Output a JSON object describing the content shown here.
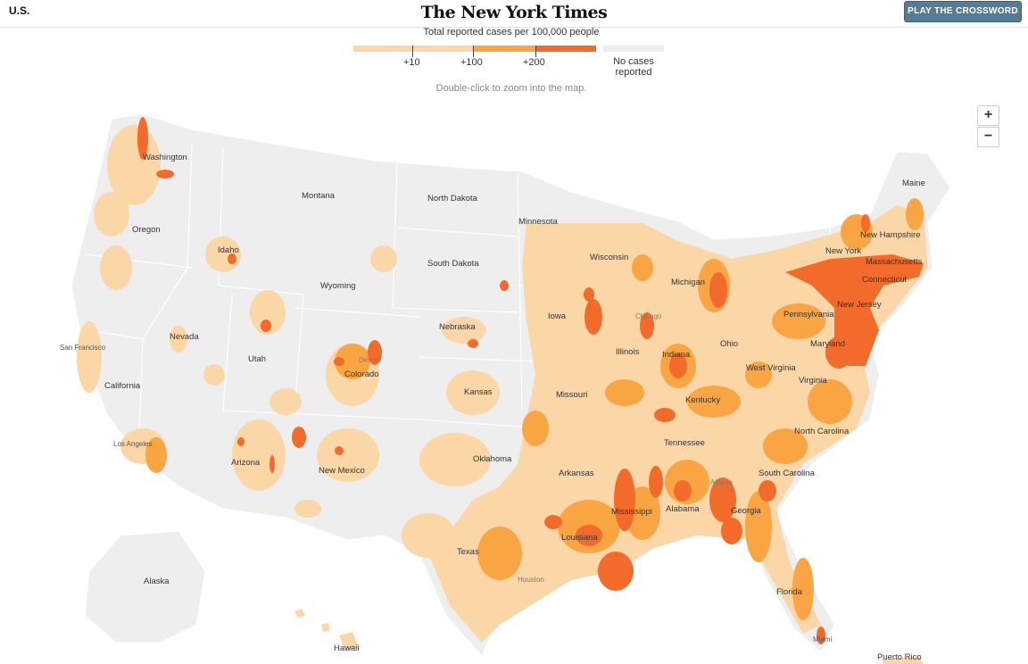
{
  "header": {
    "section": "U.S.",
    "logo": "The New York Times",
    "cta": "PLAY THE CROSSWORD"
  },
  "legend": {
    "title": "Total reported cases per 100,000 people",
    "ticks": [
      "+10",
      "+100",
      "+200"
    ],
    "no_data": "No cases reported",
    "colors": {
      "low": "#fbd7a8",
      "mid": "#f9a544",
      "high": "#f26b2b",
      "no_data": "#eeeeee"
    }
  },
  "hint": "Double-click to zoom into the map.",
  "zoom": {
    "in": "+",
    "out": "−"
  },
  "map": {
    "states": [
      "Washington",
      "Oregon",
      "California",
      "Idaho",
      "Montana",
      "Nevada",
      "Utah",
      "Arizona",
      "Wyoming",
      "Colorado",
      "New Mexico",
      "North Dakota",
      "South Dakota",
      "Nebraska",
      "Kansas",
      "Oklahoma",
      "Texas",
      "Minnesota",
      "Iowa",
      "Missouri",
      "Arkansas",
      "Louisiana",
      "Wisconsin",
      "Illinois",
      "Mississippi",
      "Michigan",
      "Indiana",
      "Kentucky",
      "Tennessee",
      "Alabama",
      "Ohio",
      "Georgia",
      "Florida",
      "South Carolina",
      "North Carolina",
      "Virginia",
      "West Virginia",
      "Pennsylvania",
      "Maryland",
      "New Jersey",
      "New York",
      "Connecticut",
      "Massachusetts",
      "New Hampshire",
      "Maine",
      "Alaska",
      "Hawaii",
      "Puerto Rico"
    ],
    "cities": [
      "San Francisco",
      "Los Angeles",
      "Denver",
      "Chicago",
      "Atlanta",
      "Houston",
      "Miami"
    ]
  }
}
